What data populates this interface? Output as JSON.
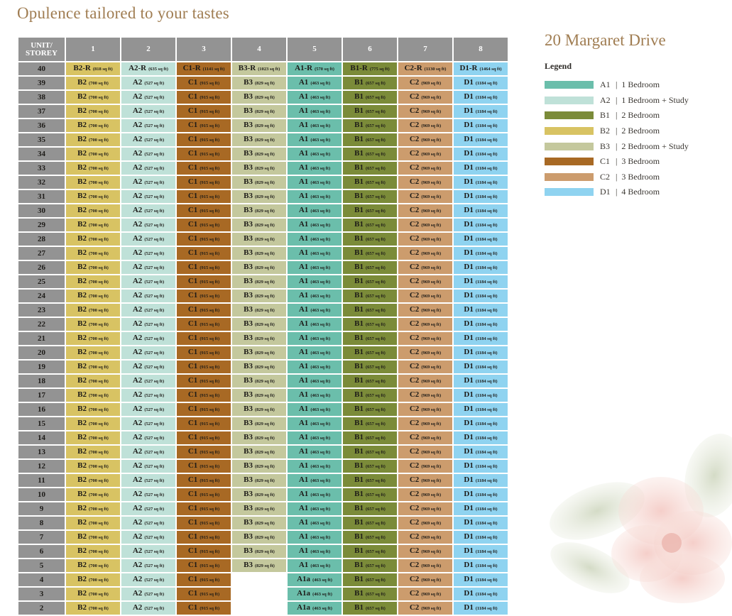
{
  "page": {
    "title": "Opulence tailored to your tastes",
    "project_name": "20 Margaret Drive"
  },
  "colors": {
    "header_bg": "#939393",
    "A1": "#6bbeab",
    "A1a": "#6bbeab",
    "A2": "#bfe1d8",
    "B1": "#7b8b39",
    "B2": "#d8c363",
    "B3": "#c4c89d",
    "C1": "#a86924",
    "C2": "#cc9c6d",
    "D1": "#8fd3f0"
  },
  "legend": {
    "title": "Legend",
    "items": [
      {
        "code": "A1",
        "sep": "|",
        "label": "1 Bedroom"
      },
      {
        "code": "A2",
        "sep": "|",
        "label": "1 Bedroom + Study"
      },
      {
        "code": "B1",
        "sep": "|",
        "label": "2 Bedroom"
      },
      {
        "code": "B2",
        "sep": "|",
        "label": "2 Bedroom"
      },
      {
        "code": "B3",
        "sep": "|",
        "label": "2 Bedroom + Study"
      },
      {
        "code": "C1",
        "sep": "|",
        "label": "3 Bedroom"
      },
      {
        "code": "C2",
        "sep": "|",
        "label": "3 Bedroom"
      },
      {
        "code": "D1",
        "sep": "|",
        "label": "4 Bedroom"
      }
    ]
  },
  "table": {
    "header_label_line1": "UNIT/",
    "header_label_line2": "STOREY",
    "columns": [
      "1",
      "2",
      "3",
      "4",
      "5",
      "6",
      "7",
      "8"
    ],
    "top_floor": "40",
    "top_row": [
      {
        "type": "B2-R",
        "size": "(818 sq ft)",
        "color_key": "B2"
      },
      {
        "type": "A2-R",
        "size": "(635 sq ft)",
        "color_key": "A2"
      },
      {
        "type": "C1-R",
        "size": "(1141 sq ft)",
        "color_key": "C1"
      },
      {
        "type": "B3-R",
        "size": "(1023 sq ft)",
        "color_key": "B3"
      },
      {
        "type": "A1-R",
        "size": "(570 sq ft)",
        "color_key": "A1"
      },
      {
        "type": "B1-R",
        "size": "(775 sq ft)",
        "color_key": "B1"
      },
      {
        "type": "C2-R",
        "size": "(1130 sq ft)",
        "color_key": "C2"
      },
      {
        "type": "D1-R",
        "size": "(1464 sq ft)",
        "color_key": "D1"
      }
    ],
    "typical_row": [
      {
        "type": "B2",
        "size": "(700 sq ft)",
        "color_key": "B2"
      },
      {
        "type": "A2",
        "size": "(527 sq ft)",
        "color_key": "A2"
      },
      {
        "type": "C1",
        "size": "(915 sq ft)",
        "color_key": "C1"
      },
      {
        "type": "B3",
        "size": "(829 sq ft)",
        "color_key": "B3"
      },
      {
        "type": "A1",
        "size": "(463 sq ft)",
        "color_key": "A1"
      },
      {
        "type": "B1",
        "size": "(657 sq ft)",
        "color_key": "B1"
      },
      {
        "type": "C2",
        "size": "(969 sq ft)",
        "color_key": "C2"
      },
      {
        "type": "D1",
        "size": "(1184 sq ft)",
        "color_key": "D1"
      }
    ],
    "typical_floors": [
      "39",
      "38",
      "37",
      "36",
      "35",
      "34",
      "33",
      "32",
      "31",
      "30",
      "29",
      "28",
      "27",
      "26",
      "25",
      "24",
      "23",
      "22",
      "21",
      "20",
      "19",
      "18",
      "17",
      "16",
      "15",
      "14",
      "13",
      "12",
      "11",
      "10",
      "9",
      "8",
      "7",
      "6",
      "5"
    ],
    "lower_row": [
      {
        "type": "B2",
        "size": "(700 sq ft)",
        "color_key": "B2"
      },
      {
        "type": "A2",
        "size": "(527 sq ft)",
        "color_key": "A2"
      },
      {
        "type": "C1",
        "size": "(915 sq ft)",
        "color_key": "C1"
      },
      null,
      {
        "type": "A1a",
        "size": "(463 sq ft)",
        "color_key": "A1a"
      },
      {
        "type": "B1",
        "size": "(657 sq ft)",
        "color_key": "B1"
      },
      {
        "type": "C2",
        "size": "(969 sq ft)",
        "color_key": "C2"
      },
      {
        "type": "D1",
        "size": "(1184 sq ft)",
        "color_key": "D1"
      }
    ],
    "lower_floors": [
      "4",
      "3",
      "2"
    ]
  }
}
